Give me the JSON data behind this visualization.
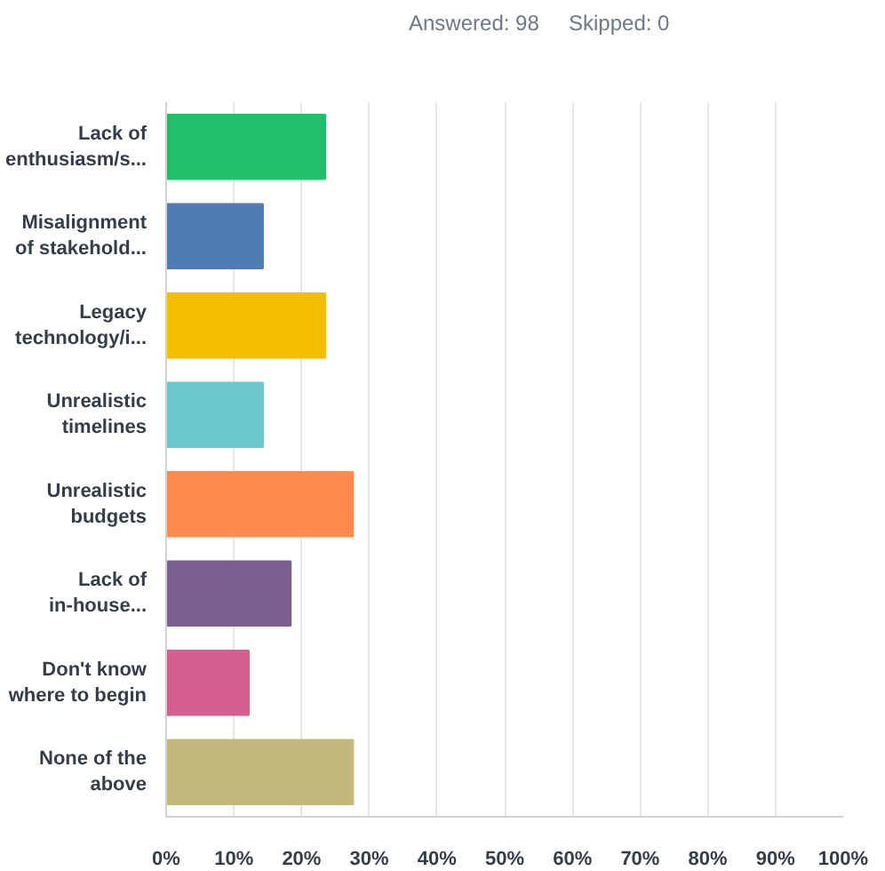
{
  "chart_data": {
    "type": "bar",
    "orientation": "horizontal",
    "annotations": [
      "Answered: 98",
      "Skipped: 0"
    ],
    "categories": [
      "Lack of\nenthusiasm/s...",
      "Misalignment\nof stakehold...",
      "Legacy\ntechnology/i...",
      "Unrealistic\ntimelines",
      "Unrealistic\nbudgets",
      "Lack of\nin-house...",
      "Don't know\nwhere to begin",
      "None of the\nabove"
    ],
    "values": [
      23.5,
      14.3,
      23.5,
      14.3,
      27.6,
      18.4,
      12.2,
      27.6
    ],
    "colors": [
      "#21bf6b",
      "#507cb6",
      "#f5bd00",
      "#6bc8cd",
      "#ff8b4f",
      "#7d5e90",
      "#d25f90",
      "#c4b97b"
    ],
    "xlim": [
      0,
      100
    ],
    "xticks": [
      {
        "value": 0,
        "label": "0%"
      },
      {
        "value": 10,
        "label": "10%"
      },
      {
        "value": 20,
        "label": "20%"
      },
      {
        "value": 30,
        "label": "30%"
      },
      {
        "value": 40,
        "label": "40%"
      },
      {
        "value": 50,
        "label": "50%"
      },
      {
        "value": 60,
        "label": "60%"
      },
      {
        "value": 70,
        "label": "70%"
      },
      {
        "value": 80,
        "label": "80%"
      },
      {
        "value": 90,
        "label": "90%"
      },
      {
        "value": 100,
        "label": "100%"
      }
    ],
    "grid": "x"
  }
}
